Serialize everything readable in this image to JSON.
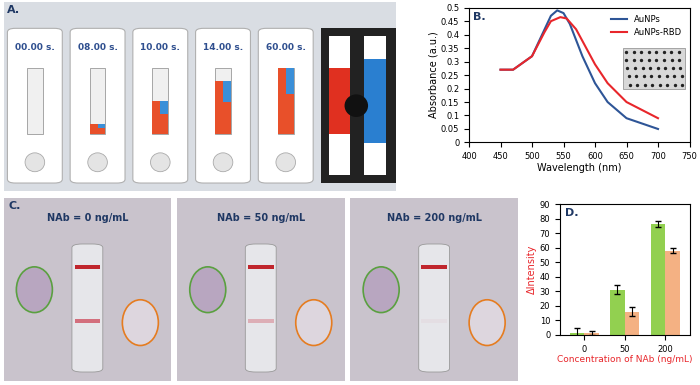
{
  "chart_data": [
    {
      "type": "line",
      "title": "B.",
      "x_label": "Wavelength (nm)",
      "y_label": "Absorbance (a.u.)",
      "series": [
        {
          "name": "AuNPs",
          "color": "#2e5597",
          "marker": "none",
          "line_style": "solid",
          "x": [
            450,
            470,
            500,
            520,
            530,
            540,
            550,
            560,
            580,
            600,
            620,
            650,
            700
          ],
          "values": [
            0.27,
            0.27,
            0.32,
            0.42,
            0.47,
            0.49,
            0.48,
            0.44,
            0.32,
            0.22,
            0.15,
            0.09,
            0.05
          ]
        },
        {
          "name": "AuNPs-RBD",
          "color": "#e8262b",
          "marker": "none",
          "line_style": "solid",
          "x": [
            450,
            470,
            500,
            520,
            530,
            545,
            555,
            570,
            600,
            620,
            650,
            700
          ],
          "values": [
            0.27,
            0.27,
            0.32,
            0.41,
            0.45,
            0.465,
            0.46,
            0.42,
            0.29,
            0.22,
            0.15,
            0.09
          ]
        }
      ],
      "xlim": [
        400,
        750
      ],
      "xticks": [
        400,
        450,
        500,
        550,
        600,
        650,
        700,
        750
      ],
      "ylim": [
        0,
        0.5
      ],
      "yticks": [
        0,
        0.05,
        0.1,
        0.15,
        0.2,
        0.25,
        0.3,
        0.35,
        0.4,
        0.45,
        0.5
      ],
      "legend": "upper right",
      "grid": false
    },
    {
      "type": "bar",
      "title": "D.",
      "x_label": "Concentration of NAb (ng/mL)",
      "y_label": "ΔIntensity",
      "categories": [
        "0",
        "50",
        "200"
      ],
      "series": [
        {
          "color": "#92d050",
          "values": [
            1.5,
            31,
            76.5
          ],
          "errors": [
            3,
            3,
            2
          ]
        },
        {
          "color": "#f4b183",
          "values": [
            1.5,
            16,
            58
          ],
          "errors": [
            1.5,
            3,
            1.5
          ]
        }
      ],
      "ylim": [
        0,
        90
      ],
      "yticks": [
        0,
        10,
        20,
        30,
        40,
        50,
        60,
        70,
        80,
        90
      ],
      "grid": false
    }
  ],
  "panels": [
    {
      "label": "A.",
      "frames": [
        "00.00 s.",
        "08.00 s.",
        "10.00 s.",
        "14.00 s.",
        "60.00 s."
      ]
    },
    {
      "label": "C.",
      "frames": [
        "NAb = 0 ng/mL",
        "NAb = 50 ng/mL",
        "NAb = 200 ng/mL"
      ]
    }
  ]
}
